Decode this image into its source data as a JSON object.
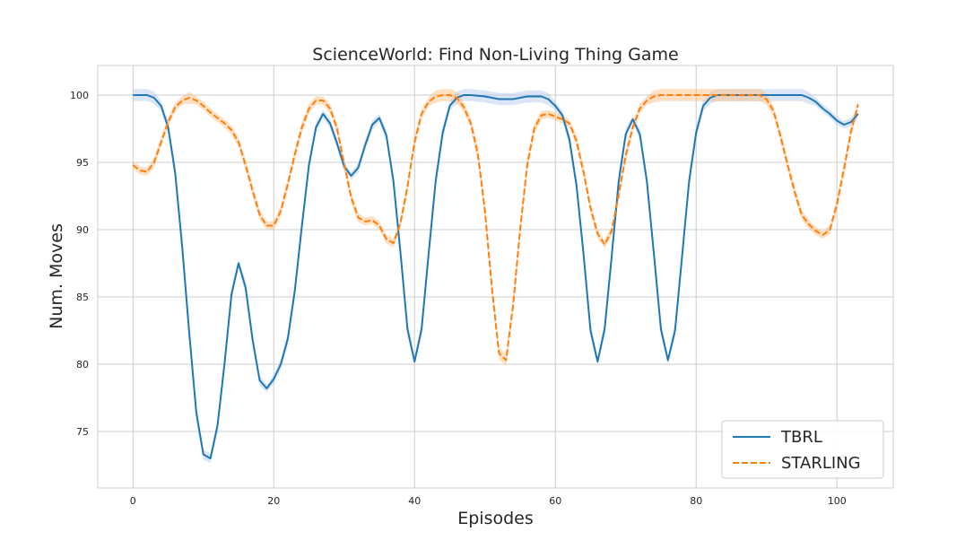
{
  "chart_data": {
    "type": "line",
    "title": "ScienceWorld: Find Non-Living Thing Game",
    "xlabel": "Episodes",
    "ylabel": "Num. Moves",
    "xlim": [
      -5,
      108
    ],
    "ylim": [
      70.8,
      102.2
    ],
    "xticks": [
      0,
      20,
      40,
      60,
      80,
      100
    ],
    "yticks": [
      75,
      80,
      85,
      90,
      95,
      100
    ],
    "grid": true,
    "legend_position": "bottom-right",
    "series": [
      {
        "name": "TBRL",
        "style": "solid",
        "color": "#1f77b4",
        "band_color": "#aec7e8",
        "points": [
          [
            0,
            100
          ],
          [
            2,
            100
          ],
          [
            3,
            99.8
          ],
          [
            4,
            99.2
          ],
          [
            5,
            97.6
          ],
          [
            6,
            94.2
          ],
          [
            7,
            88.7
          ],
          [
            8,
            82.3
          ],
          [
            9,
            76.4
          ],
          [
            10,
            73.3
          ],
          [
            11,
            73
          ],
          [
            12,
            75.4
          ],
          [
            13,
            80
          ],
          [
            14,
            85.2
          ],
          [
            15,
            87.5
          ],
          [
            16,
            85.7
          ],
          [
            17,
            81.8
          ],
          [
            18,
            78.8
          ],
          [
            19,
            78.2
          ],
          [
            20,
            78.9
          ],
          [
            21,
            80
          ],
          [
            22,
            81.9
          ],
          [
            23,
            85.5
          ],
          [
            24,
            90.3
          ],
          [
            25,
            94.8
          ],
          [
            26,
            97.6
          ],
          [
            27,
            98.6
          ],
          [
            28,
            97.9
          ],
          [
            29,
            96.4
          ],
          [
            30,
            94.7
          ],
          [
            31,
            94
          ],
          [
            32,
            94.6
          ],
          [
            33,
            96.3
          ],
          [
            34,
            97.8
          ],
          [
            35,
            98.3
          ],
          [
            36,
            97
          ],
          [
            37,
            93.6
          ],
          [
            38,
            88.3
          ],
          [
            39,
            82.6
          ],
          [
            40,
            80.2
          ],
          [
            41,
            82.6
          ],
          [
            42,
            88.2
          ],
          [
            43,
            93.6
          ],
          [
            44,
            97.2
          ],
          [
            45,
            99.2
          ],
          [
            46,
            99.8
          ],
          [
            47,
            100
          ],
          [
            48,
            100
          ],
          [
            50,
            99.9
          ],
          [
            52,
            99.7
          ],
          [
            54,
            99.7
          ],
          [
            56,
            99.9
          ],
          [
            58,
            99.9
          ],
          [
            59,
            99.7
          ],
          [
            60,
            99.2
          ],
          [
            61,
            98.5
          ],
          [
            62,
            96.7
          ],
          [
            63,
            93.3
          ],
          [
            64,
            88.2
          ],
          [
            65,
            82.5
          ],
          [
            66,
            80.2
          ],
          [
            67,
            82.6
          ],
          [
            68,
            88
          ],
          [
            69,
            93.6
          ],
          [
            70,
            97.1
          ],
          [
            71,
            98.2
          ],
          [
            72,
            97.1
          ],
          [
            73,
            93.6
          ],
          [
            74,
            88.2
          ],
          [
            75,
            82.6
          ],
          [
            76,
            80.3
          ],
          [
            77,
            82.5
          ],
          [
            78,
            88
          ],
          [
            79,
            93.6
          ],
          [
            80,
            97.2
          ],
          [
            81,
            99.2
          ],
          [
            82,
            99.8
          ],
          [
            83,
            100
          ],
          [
            95,
            100
          ],
          [
            96,
            99.8
          ],
          [
            97,
            99.5
          ],
          [
            98,
            99
          ],
          [
            99,
            98.6
          ],
          [
            100,
            98.1
          ],
          [
            101,
            97.8
          ],
          [
            102,
            98
          ],
          [
            103,
            98.6
          ]
        ]
      },
      {
        "name": "STARLING",
        "style": "dashed",
        "color": "#ff7f0e",
        "band_color": "#ffbb78",
        "points": [
          [
            0,
            94.8
          ],
          [
            1,
            94.4
          ],
          [
            2,
            94.3
          ],
          [
            3,
            95
          ],
          [
            4,
            96.5
          ],
          [
            5,
            98
          ],
          [
            6,
            99.1
          ],
          [
            7,
            99.6
          ],
          [
            8,
            99.8
          ],
          [
            9,
            99.6
          ],
          [
            10,
            99.2
          ],
          [
            11,
            98.7
          ],
          [
            12,
            98.3
          ],
          [
            13,
            97.9
          ],
          [
            14,
            97.4
          ],
          [
            15,
            96.5
          ],
          [
            16,
            94.8
          ],
          [
            17,
            92.9
          ],
          [
            18,
            91.1
          ],
          [
            19,
            90.3
          ],
          [
            20,
            90.3
          ],
          [
            21,
            91.4
          ],
          [
            22,
            93.4
          ],
          [
            23,
            95.6
          ],
          [
            24,
            97.6
          ],
          [
            25,
            99
          ],
          [
            26,
            99.6
          ],
          [
            27,
            99.6
          ],
          [
            28,
            99
          ],
          [
            29,
            97.5
          ],
          [
            30,
            94.9
          ],
          [
            31,
            92.4
          ],
          [
            32,
            90.9
          ],
          [
            33,
            90.6
          ],
          [
            34,
            90.7
          ],
          [
            35,
            90.3
          ],
          [
            36,
            89.3
          ],
          [
            37,
            89
          ],
          [
            38,
            90.5
          ],
          [
            39,
            93.2
          ],
          [
            40,
            96.5
          ],
          [
            41,
            98.6
          ],
          [
            42,
            99.5
          ],
          [
            43,
            99.9
          ],
          [
            44,
            100
          ],
          [
            45,
            100
          ],
          [
            46,
            99.8
          ],
          [
            47,
            99.1
          ],
          [
            48,
            97.9
          ],
          [
            49,
            95.6
          ],
          [
            50,
            91.4
          ],
          [
            51,
            85.6
          ],
          [
            52,
            80.8
          ],
          [
            53,
            80.3
          ],
          [
            54,
            84.4
          ],
          [
            55,
            90
          ],
          [
            56,
            94.8
          ],
          [
            57,
            97.5
          ],
          [
            58,
            98.5
          ],
          [
            59,
            98.6
          ],
          [
            60,
            98.4
          ],
          [
            61,
            98.2
          ],
          [
            62,
            97.9
          ],
          [
            63,
            96.6
          ],
          [
            64,
            94.3
          ],
          [
            65,
            91.6
          ],
          [
            66,
            89.7
          ],
          [
            67,
            88.9
          ],
          [
            68,
            89.9
          ],
          [
            69,
            92.6
          ],
          [
            70,
            95.5
          ],
          [
            71,
            97.6
          ],
          [
            72,
            99
          ],
          [
            73,
            99.6
          ],
          [
            74,
            99.9
          ],
          [
            75,
            100
          ],
          [
            89,
            100
          ],
          [
            90,
            99.7
          ],
          [
            91,
            98.8
          ],
          [
            92,
            96.9
          ],
          [
            93,
            94.8
          ],
          [
            94,
            92.8
          ],
          [
            95,
            91.1
          ],
          [
            96,
            90.4
          ],
          [
            97,
            89.9
          ],
          [
            98,
            89.6
          ],
          [
            99,
            90
          ],
          [
            100,
            91.9
          ],
          [
            101,
            94.5
          ],
          [
            102,
            97.3
          ],
          [
            103,
            99.3
          ]
        ]
      }
    ]
  }
}
